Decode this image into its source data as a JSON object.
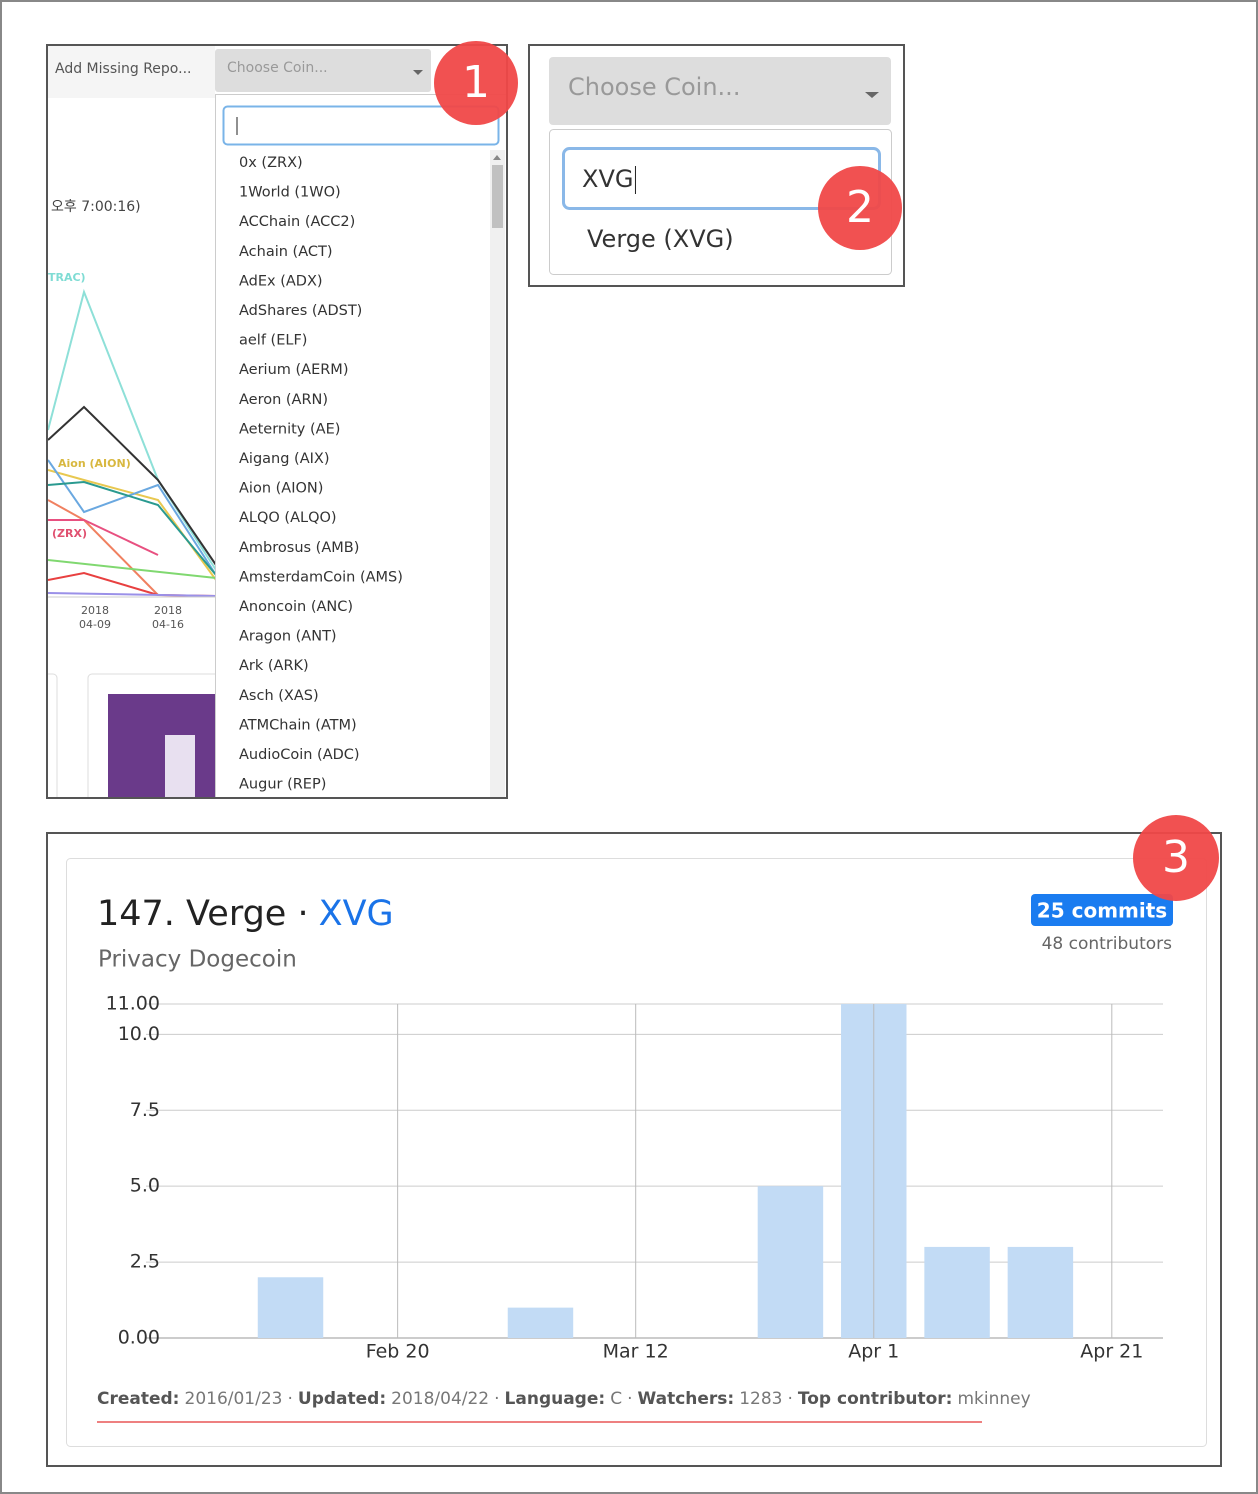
{
  "panel1": {
    "toolbar_text": "Add Missing Repo...",
    "dropdown_text": "Choose Coin...",
    "step": "1",
    "background": {
      "time_text": "오후 7:00:16)",
      "series_labels": [
        "TRAC)",
        "Aion (AION)",
        "(ZRX)"
      ],
      "x_labels": [
        [
          "2018",
          "04-09"
        ],
        [
          "2018",
          "04-16"
        ]
      ]
    },
    "options": [
      "0x (ZRX)",
      "1World (1WO)",
      "ACChain (ACC2)",
      "Achain (ACT)",
      "AdEx (ADX)",
      "AdShares (ADST)",
      "aelf (ELF)",
      "Aerium (AERM)",
      "Aeron (ARN)",
      "Aeternity (AE)",
      "Aigang (AIX)",
      "Aion (AION)",
      "ALQO (ALQO)",
      "Ambrosus (AMB)",
      "AmsterdamCoin (AMS)",
      "Anoncoin (ANC)",
      "Aragon (ANT)",
      "Ark (ARK)",
      "Asch (XAS)",
      "ATMChain (ATM)",
      "AudioCoin (ADC)",
      "Augur (REP)"
    ]
  },
  "panel2": {
    "dropdown_text": "Choose Coin...",
    "search_text": "XVG",
    "result": "Verge (XVG)",
    "step": "2"
  },
  "panel3": {
    "step": "3",
    "title": "147. Verge ·",
    "symbol": "XVG",
    "subtitle": "Privacy Dogecoin",
    "commits": "25 commits",
    "contributors": "48 contributors",
    "chart": {
      "type": "bar",
      "x": [
        42,
        63,
        84,
        91,
        98,
        105
      ],
      "values": [
        2,
        1,
        5,
        11,
        3,
        3
      ],
      "bar_width_days": 5.5,
      "color": "#c2dbf5",
      "xlim": [
        30.7,
        115.3
      ],
      "xticks": [
        {
          "value": 51,
          "label": "Feb 20"
        },
        {
          "value": 71,
          "label": "Mar 12"
        },
        {
          "value": 91,
          "label": "Apr 1"
        },
        {
          "value": 111,
          "label": "Apr 21"
        }
      ],
      "ylim": [
        0,
        11
      ],
      "yticks": [
        {
          "value": 0,
          "label": "0.00"
        },
        2.5,
        {
          "value": 5,
          "label": "5.0"
        },
        7.5,
        {
          "value": 10,
          "label": "10.0"
        },
        {
          "value": 11,
          "label": "11.00"
        }
      ],
      "grid": true
    },
    "separator": "·",
    "footer": [
      {
        "label": "Created:",
        "value": "2016/01/23"
      },
      {
        "label": "Updated:",
        "value": "2018/04/22"
      },
      {
        "label": "Language:",
        "value": "C"
      },
      {
        "label": "Watchers:",
        "value": "1283"
      },
      {
        "label": "Top contributor:",
        "value": "mkinney"
      }
    ]
  }
}
